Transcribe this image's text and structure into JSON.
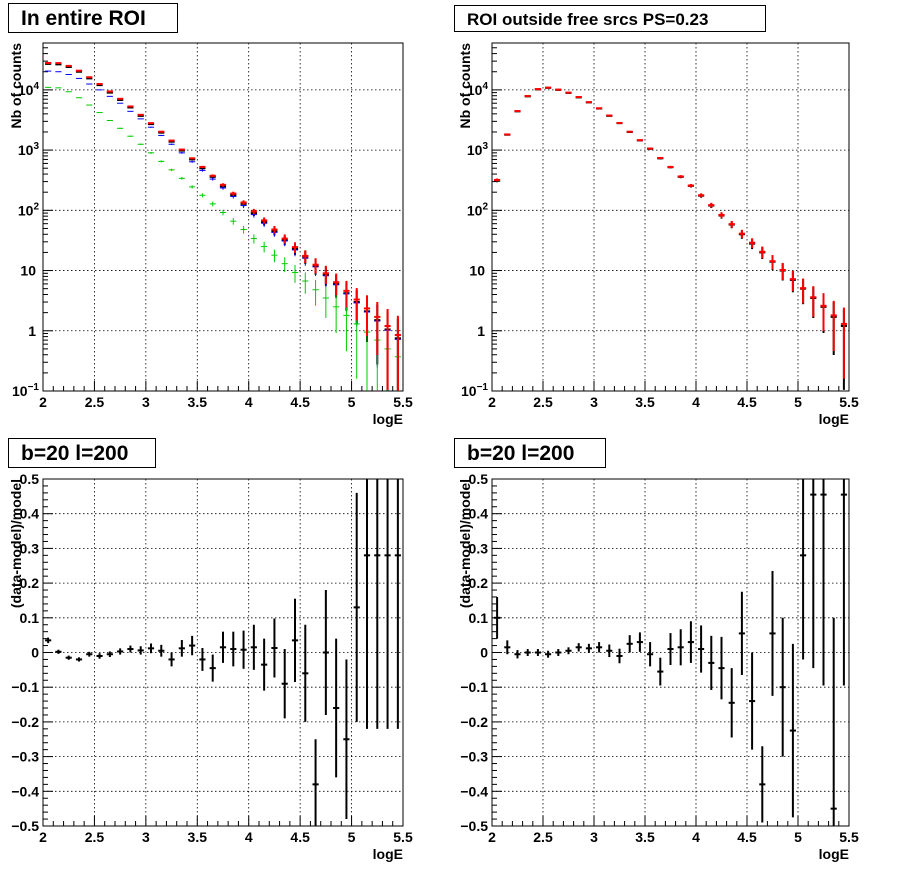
{
  "colors": {
    "data": "#000000",
    "model": "#ff0000",
    "total": "#0000ff",
    "component": "#00cc00",
    "grid": "#000000"
  },
  "chart_data": [
    {
      "type": "scatter",
      "title": "In entire ROI",
      "xlabel": "logE",
      "ylabel": "Nb of counts",
      "xlim": [
        2,
        5.5
      ],
      "ylim": [
        0.1,
        60000
      ],
      "yscale": "log",
      "grid": true,
      "x_ticks": [
        "2",
        "2.5",
        "3",
        "3.5",
        "4",
        "4.5",
        "5",
        "5.5"
      ],
      "y_ticks": [
        {
          "base": "10",
          "exp": "−1"
        },
        {
          "base": "1",
          "exp": ""
        },
        {
          "base": "10",
          "exp": ""
        },
        {
          "base": "10",
          "exp": "2"
        },
        {
          "base": "10",
          "exp": "3"
        },
        {
          "base": "10",
          "exp": "4"
        }
      ],
      "x": [
        2.05,
        2.15,
        2.25,
        2.35,
        2.45,
        2.55,
        2.65,
        2.75,
        2.85,
        2.95,
        3.05,
        3.15,
        3.25,
        3.35,
        3.45,
        3.55,
        3.65,
        3.75,
        3.85,
        3.95,
        4.05,
        4.15,
        4.25,
        4.35,
        4.45,
        4.55,
        4.65,
        4.75,
        4.85,
        4.95,
        5.05,
        5.15,
        5.25,
        5.35,
        5.45
      ],
      "series": [
        {
          "role": "data",
          "values": [
            27000,
            26500,
            24000,
            20000,
            15500,
            12000,
            9000,
            6800,
            5100,
            3700,
            2700,
            1950,
            1380,
            980,
            700,
            500,
            360,
            250,
            180,
            128,
            90,
            64,
            45,
            32,
            23,
            17,
            12,
            8.5,
            6,
            4.2,
            3,
            2.1,
            1.5,
            1.05,
            0.75
          ]
        },
        {
          "role": "total",
          "values": [
            20500,
            20000,
            18000,
            15500,
            12500,
            10000,
            7800,
            6000,
            4400,
            3300,
            2400,
            1750,
            1250,
            900,
            640,
            460,
            330,
            235,
            170,
            120,
            85,
            61,
            43,
            31,
            22,
            16,
            11.5,
            8.2,
            5.8,
            4.1,
            2.9,
            2.05,
            1.45,
            1.02,
            0.72
          ]
        },
        {
          "role": "component",
          "values": [
            11000,
            10800,
            9300,
            7400,
            5600,
            4200,
            3100,
            2300,
            1700,
            1250,
            900,
            650,
            470,
            340,
            245,
            178,
            128,
            92,
            66,
            48,
            34,
            25,
            18,
            13,
            9.3,
            6.7,
            4.8,
            3.5,
            2.5,
            1.8,
            1.3,
            0.95,
            0.7,
            0.5,
            0.37
          ]
        },
        {
          "role": "model",
          "values": [
            28000,
            27800,
            25000,
            20800,
            16200,
            12500,
            9400,
            7100,
            5300,
            3850,
            2800,
            2020,
            1440,
            1020,
            730,
            525,
            375,
            265,
            190,
            135,
            96,
            68,
            48,
            34,
            24.5,
            17.5,
            12.5,
            9,
            6.4,
            4.6,
            3.3,
            2.35,
            1.7,
            1.2,
            0.85
          ]
        }
      ]
    },
    {
      "type": "scatter",
      "title": "ROI outside free srcs PS=0.23",
      "xlabel": "logE",
      "ylabel": "Nb of counts",
      "xlim": [
        2,
        5.5
      ],
      "ylim": [
        0.1,
        60000
      ],
      "yscale": "log",
      "grid": true,
      "x_ticks": [
        "2",
        "2.5",
        "3",
        "3.5",
        "4",
        "4.5",
        "5",
        "5.5"
      ],
      "y_ticks": [
        {
          "base": "10",
          "exp": "−1"
        },
        {
          "base": "1",
          "exp": ""
        },
        {
          "base": "10",
          "exp": ""
        },
        {
          "base": "10",
          "exp": "2"
        },
        {
          "base": "10",
          "exp": "3"
        },
        {
          "base": "10",
          "exp": "4"
        }
      ],
      "x": [
        2.05,
        2.15,
        2.25,
        2.35,
        2.45,
        2.55,
        2.65,
        2.75,
        2.85,
        2.95,
        3.05,
        3.15,
        3.25,
        3.35,
        3.45,
        3.55,
        3.65,
        3.75,
        3.85,
        3.95,
        4.05,
        4.15,
        4.25,
        4.35,
        4.45,
        4.55,
        4.65,
        4.75,
        4.85,
        4.95,
        5.05,
        5.15,
        5.25,
        5.35,
        5.45
      ],
      "series": [
        {
          "role": "data",
          "values": [
            310,
            1800,
            4400,
            7800,
            10200,
            10800,
            10000,
            8900,
            7500,
            6200,
            4900,
            3700,
            2800,
            2000,
            1450,
            1050,
            730,
            520,
            360,
            255,
            175,
            120,
            82,
            58,
            40,
            28,
            20,
            14,
            10,
            7,
            5,
            3.5,
            2.5,
            1.7,
            1.2
          ]
        },
        {
          "role": "model",
          "values": [
            320,
            1820,
            4450,
            7900,
            10300,
            10900,
            10100,
            9000,
            7600,
            6250,
            4950,
            3750,
            2820,
            2020,
            1460,
            1060,
            740,
            525,
            365,
            258,
            178,
            122,
            84,
            59,
            41,
            29,
            20.5,
            14.3,
            10.2,
            7.2,
            5.1,
            3.6,
            2.6,
            1.8,
            1.3
          ]
        }
      ]
    },
    {
      "type": "scatter",
      "title": "b=20 l=200",
      "xlabel": "logE",
      "ylabel": "(data-model)/model",
      "xlim": [
        2,
        5.5
      ],
      "ylim": [
        -0.5,
        0.5
      ],
      "grid": true,
      "x_ticks": [
        "2",
        "2.5",
        "3",
        "3.5",
        "4",
        "4.5",
        "5",
        "5.5"
      ],
      "y_ticks": [
        "−0.5",
        "−0.4",
        "−0.3",
        "−0.2",
        "−0.1",
        "0",
        "0.1",
        "0.2",
        "0.3",
        "0.4",
        "0.5"
      ],
      "x": [
        2.05,
        2.15,
        2.25,
        2.35,
        2.45,
        2.55,
        2.65,
        2.75,
        2.85,
        2.95,
        3.05,
        3.15,
        3.25,
        3.35,
        3.45,
        3.55,
        3.65,
        3.75,
        3.85,
        3.95,
        4.05,
        4.15,
        4.25,
        4.35,
        4.45,
        4.55,
        4.65,
        4.75,
        4.85,
        4.95,
        5.05,
        5.15,
        5.25,
        5.35,
        5.45
      ],
      "series": [
        {
          "role": "data",
          "values": [
            0.035,
            0.002,
            -0.015,
            -0.02,
            -0.005,
            -0.01,
            -0.005,
            0.003,
            0.01,
            0.006,
            0.012,
            0.005,
            -0.02,
            0.012,
            0.02,
            -0.02,
            -0.045,
            0.015,
            0.01,
            0.008,
            0.015,
            -0.035,
            0.013,
            -0.09,
            0.035,
            -0.06,
            -0.38,
            0.0,
            -0.16,
            -0.25,
            0.13,
            0.28,
            0.28,
            0.28,
            0.28
          ],
          "errors": [
            0.008,
            0.006,
            0.006,
            0.006,
            0.007,
            0.008,
            0.008,
            0.009,
            0.01,
            0.012,
            0.014,
            0.017,
            0.02,
            0.024,
            0.028,
            0.033,
            0.039,
            0.045,
            0.05,
            0.055,
            0.065,
            0.075,
            0.085,
            0.1,
            0.12,
            0.14,
            0.13,
            0.18,
            0.2,
            0.23,
            0.33,
            0.5,
            0.5,
            0.5,
            0.5
          ]
        }
      ]
    },
    {
      "type": "scatter",
      "title": "b=20 l=200",
      "xlabel": "logE",
      "ylabel": "(data-model)/model",
      "xlim": [
        2,
        5.5
      ],
      "ylim": [
        -0.5,
        0.5
      ],
      "grid": true,
      "x_ticks": [
        "2",
        "2.5",
        "3",
        "3.5",
        "4",
        "4.5",
        "5",
        "5.5"
      ],
      "y_ticks": [
        "−0.5",
        "−0.4",
        "−0.3",
        "−0.2",
        "−0.1",
        "0",
        "0.1",
        "0.2",
        "0.3",
        "0.4",
        "0.5"
      ],
      "x": [
        2.05,
        2.15,
        2.25,
        2.35,
        2.45,
        2.55,
        2.65,
        2.75,
        2.85,
        2.95,
        3.05,
        3.15,
        3.25,
        3.35,
        3.45,
        3.55,
        3.65,
        3.75,
        3.85,
        3.95,
        4.05,
        4.15,
        4.25,
        4.35,
        4.45,
        4.55,
        4.65,
        4.75,
        4.85,
        4.95,
        5.05,
        5.15,
        5.25,
        5.35,
        5.45
      ],
      "series": [
        {
          "role": "data",
          "values": [
            0.1,
            0.015,
            -0.005,
            0.0,
            0.0,
            -0.005,
            0.0,
            0.005,
            0.015,
            0.012,
            0.015,
            0.005,
            -0.01,
            0.025,
            0.03,
            -0.005,
            -0.055,
            0.01,
            0.015,
            0.03,
            0.01,
            -0.03,
            -0.045,
            -0.145,
            0.055,
            -0.14,
            -0.38,
            0.055,
            -0.1,
            -0.225,
            0.28,
            0.455,
            0.455,
            -0.45,
            0.455
          ],
          "errors": [
            0.06,
            0.02,
            0.012,
            0.01,
            0.01,
            0.01,
            0.01,
            0.01,
            0.012,
            0.013,
            0.015,
            0.018,
            0.021,
            0.025,
            0.028,
            0.035,
            0.04,
            0.046,
            0.052,
            0.06,
            0.068,
            0.078,
            0.09,
            0.1,
            0.12,
            0.14,
            0.11,
            0.18,
            0.2,
            0.25,
            0.3,
            0.5,
            0.55,
            0.55,
            0.55
          ]
        }
      ]
    }
  ]
}
